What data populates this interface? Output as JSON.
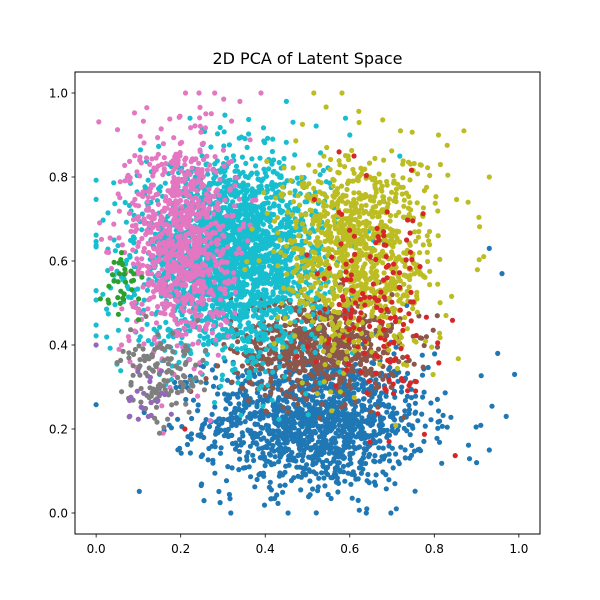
{
  "chart_data": {
    "type": "scatter",
    "title": "2D PCA of Latent Space",
    "xlabel": "",
    "ylabel": "",
    "xlim": [
      -0.05,
      1.05
    ],
    "ylim": [
      -0.05,
      1.05
    ],
    "xticks": [
      0.0,
      0.2,
      0.4,
      0.6,
      0.8,
      1.0
    ],
    "yticks": [
      0.0,
      0.2,
      0.4,
      0.6,
      0.8,
      1.0
    ],
    "xtick_labels": [
      "0.0",
      "0.2",
      "0.4",
      "0.6",
      "0.8",
      "1.0"
    ],
    "ytick_labels": [
      "0.0",
      "0.2",
      "0.4",
      "0.6",
      "0.8",
      "1.0"
    ],
    "grid": false,
    "legend": "none",
    "series": [
      {
        "color": "#1f77b4",
        "cluster": {
          "center": [
            0.52,
            0.22
          ],
          "spread": [
            0.13,
            0.08
          ],
          "count": 1400
        },
        "points": [
          [
            0.99,
            0.33
          ],
          [
            0.96,
            0.57
          ],
          [
            0.93,
            0.63
          ],
          [
            0.97,
            0.23
          ],
          [
            0.93,
            0.15
          ],
          [
            0.71,
            0.01
          ],
          [
            0.9,
            0.12
          ],
          [
            0.95,
            0.38
          ],
          [
            0.62,
            0.03
          ]
        ]
      },
      {
        "color": "#8c564b",
        "cluster": {
          "center": [
            0.52,
            0.4
          ],
          "spread": [
            0.1,
            0.06
          ],
          "count": 700
        },
        "points": [
          [
            0.26,
            0.32
          ],
          [
            0.7,
            0.52
          ],
          [
            0.65,
            0.6
          ],
          [
            0.4,
            0.28
          ]
        ]
      },
      {
        "color": "#17becf",
        "cluster": {
          "center": [
            0.32,
            0.61
          ],
          "spread": [
            0.11,
            0.11
          ],
          "count": 2400
        },
        "points": [
          [
            0.59,
            0.94
          ],
          [
            0.45,
            0.98
          ],
          [
            0.6,
            0.9
          ],
          [
            0.18,
            0.35
          ],
          [
            0.15,
            0.33
          ]
        ]
      },
      {
        "color": "#e377c2",
        "cluster": {
          "center": [
            0.2,
            0.65
          ],
          "spread": [
            0.06,
            0.13
          ],
          "count": 900
        },
        "points": [
          [
            0.39,
            1.0
          ],
          [
            0.34,
            0.98
          ],
          [
            0.08,
            0.36
          ],
          [
            0.06,
            0.4
          ],
          [
            0.27,
            0.22
          ]
        ]
      },
      {
        "color": "#bcbd22",
        "cluster": {
          "center": [
            0.62,
            0.62
          ],
          "spread": [
            0.09,
            0.12
          ],
          "count": 1000
        },
        "points": [
          [
            0.87,
            0.91
          ],
          [
            0.81,
            0.9
          ],
          [
            0.72,
            0.91
          ],
          [
            0.93,
            0.8
          ],
          [
            0.88,
            0.74
          ]
        ]
      },
      {
        "color": "#d62728",
        "cluster": {
          "center": [
            0.66,
            0.48
          ],
          "spread": [
            0.07,
            0.12
          ],
          "count": 160
        },
        "points": [
          [
            0.21,
            0.2
          ],
          [
            0.68,
            0.67
          ],
          [
            0.61,
            0.85
          ]
        ]
      },
      {
        "color": "#7f7f7f",
        "cluster": {
          "center": [
            0.16,
            0.32
          ],
          "spread": [
            0.05,
            0.05
          ],
          "count": 120
        },
        "points": [
          [
            0.15,
            0.19
          ],
          [
            0.12,
            0.28
          ],
          [
            0.22,
            0.24
          ]
        ]
      },
      {
        "color": "#2ca02c",
        "cluster": {
          "center": [
            0.06,
            0.55
          ],
          "spread": [
            0.02,
            0.05
          ],
          "count": 30
        },
        "points": [
          [
            0.01,
            0.51
          ],
          [
            0.03,
            0.5
          ],
          [
            0.06,
            0.62
          ]
        ]
      },
      {
        "color": "#9467bd",
        "cluster": {
          "center": [
            0.13,
            0.28
          ],
          "spread": [
            0.03,
            0.04
          ],
          "count": 20
        },
        "points": [
          [
            0.0,
            0.4
          ],
          [
            0.11,
            0.25
          ]
        ]
      }
    ]
  }
}
